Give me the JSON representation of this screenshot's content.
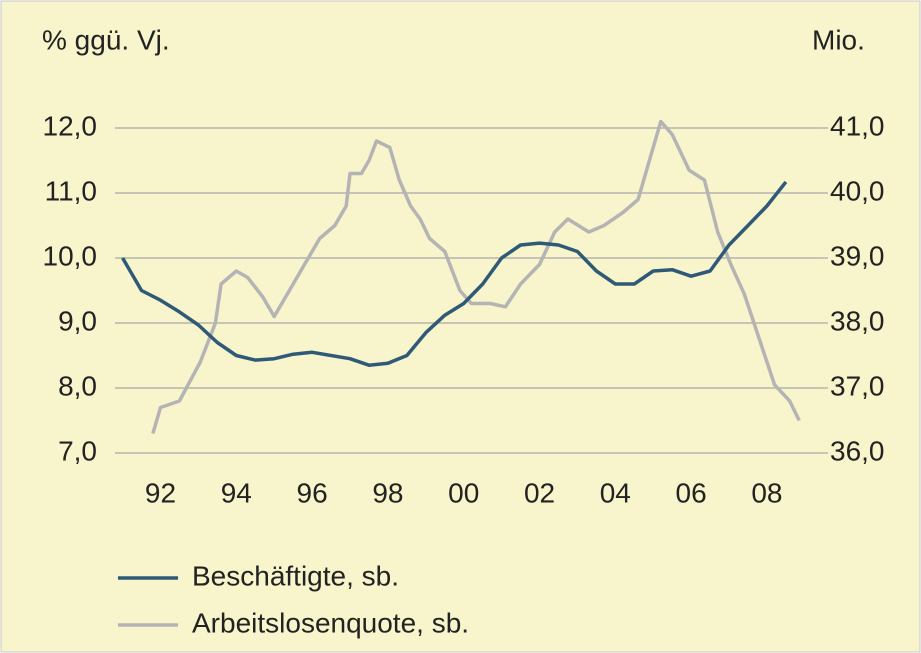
{
  "chart_data": {
    "type": "line",
    "y_label": "% ggü. Vj.",
    "y2_label": "Mio.",
    "xlim": [
      1990.8,
      2009.4
    ],
    "xticks": [
      {
        "value": 1992,
        "label": "92"
      },
      {
        "value": 1994,
        "label": "94"
      },
      {
        "value": 1996,
        "label": "96"
      },
      {
        "value": 1998,
        "label": "98"
      },
      {
        "value": 2000,
        "label": "00"
      },
      {
        "value": 2002,
        "label": "02"
      },
      {
        "value": 2004,
        "label": "04"
      },
      {
        "value": 2006,
        "label": "06"
      },
      {
        "value": 2008,
        "label": "08"
      }
    ],
    "ylim": [
      7,
      12
    ],
    "yticks": [
      {
        "value": 7,
        "label": "7,0"
      },
      {
        "value": 8,
        "label": "8,0"
      },
      {
        "value": 9,
        "label": "9,0"
      },
      {
        "value": 10,
        "label": "10,0"
      },
      {
        "value": 11,
        "label": "11,0"
      },
      {
        "value": 12,
        "label": "12,0"
      }
    ],
    "y2lim": [
      36,
      41
    ],
    "y2ticks": [
      {
        "value": 36,
        "label": "36,0"
      },
      {
        "value": 37,
        "label": "37,0"
      },
      {
        "value": 38,
        "label": "38,0"
      },
      {
        "value": 39,
        "label": "39,0"
      },
      {
        "value": 40,
        "label": "40,0"
      },
      {
        "value": 41,
        "label": "41,0"
      }
    ],
    "grid": true,
    "legend": "bottom",
    "series": [
      {
        "name": "Beschäftigte, sb.",
        "color": "#2e5a78",
        "axis": "y2",
        "x": [
          1991.0,
          1991.5,
          1992.0,
          1992.5,
          1993.0,
          1993.5,
          1994.0,
          1994.5,
          1995.0,
          1995.5,
          1996.0,
          1996.5,
          1997.0,
          1997.5,
          1998.0,
          1998.5,
          1999.0,
          1999.5,
          2000.0,
          2000.5,
          2001.0,
          2001.5,
          2002.0,
          2002.5,
          2003.0,
          2003.5,
          2004.0,
          2004.5,
          2005.0,
          2005.5,
          2006.0,
          2006.5,
          2007.0,
          2007.5,
          2008.0,
          2008.5
        ],
        "values": [
          39.0,
          38.5,
          38.35,
          38.17,
          37.97,
          37.7,
          37.5,
          37.43,
          37.45,
          37.52,
          37.55,
          37.5,
          37.45,
          37.35,
          37.38,
          37.5,
          37.85,
          38.12,
          38.3,
          38.6,
          39.0,
          39.2,
          39.23,
          39.2,
          39.1,
          38.8,
          38.6,
          38.6,
          38.8,
          38.82,
          38.72,
          38.8,
          39.2,
          39.5,
          39.8,
          40.17
        ]
      },
      {
        "name": "Arbeitslosenquote, sb.",
        "color": "#b4b4b4",
        "axis": "y",
        "x": [
          1991.8,
          1992.0,
          1992.5,
          1993.05,
          1993.45,
          1993.6,
          1994.0,
          1994.3,
          1994.7,
          1995.0,
          1995.4,
          1995.8,
          1996.2,
          1996.6,
          1996.9,
          1997.0,
          1997.3,
          1997.5,
          1997.7,
          1998.05,
          1998.3,
          1998.6,
          1998.85,
          1999.1,
          1999.5,
          1999.9,
          2000.2,
          2000.7,
          2001.1,
          2001.5,
          2002.0,
          2002.4,
          2002.75,
          2003.3,
          2003.7,
          2004.2,
          2004.6,
          2004.9,
          2005.2,
          2005.5,
          2005.95,
          2006.35,
          2006.7,
          2007.05,
          2007.4,
          2007.8,
          2008.2,
          2008.6,
          2008.85
        ],
        "values": [
          7.3,
          7.7,
          7.8,
          8.4,
          9.0,
          9.6,
          9.8,
          9.7,
          9.4,
          9.1,
          9.5,
          9.9,
          10.3,
          10.5,
          10.8,
          11.3,
          11.3,
          11.5,
          11.8,
          11.7,
          11.2,
          10.8,
          10.6,
          10.3,
          10.1,
          9.5,
          9.3,
          9.3,
          9.25,
          9.6,
          9.9,
          10.4,
          10.6,
          10.4,
          10.5,
          10.7,
          10.9,
          11.5,
          12.1,
          11.9,
          11.35,
          11.2,
          10.4,
          9.9,
          9.45,
          8.75,
          8.05,
          7.8,
          7.5
        ]
      }
    ]
  }
}
